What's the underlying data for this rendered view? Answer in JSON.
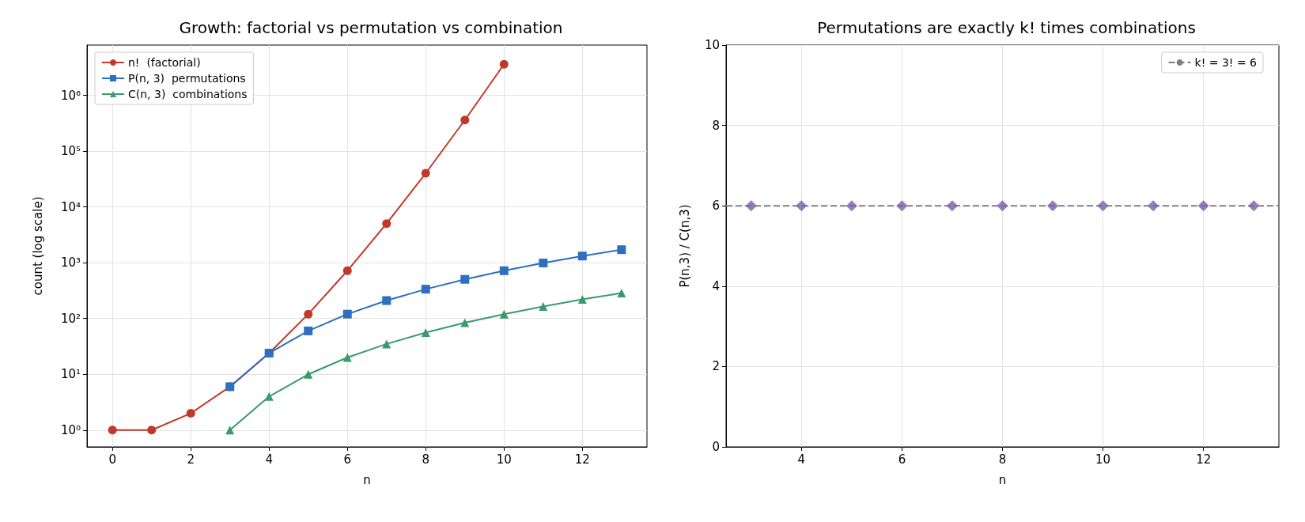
{
  "chart_data": [
    {
      "type": "line",
      "title": "Growth: factorial vs permutation vs combination",
      "xlabel": "n",
      "ylabel": "count (log scale)",
      "log": "y",
      "grid": true,
      "legend": "top left",
      "line_style": "solid",
      "xlim": [
        -0.65,
        13.65
      ],
      "xticks": [
        0,
        2,
        4,
        6,
        8,
        10,
        12
      ],
      "ylim": [
        0.5,
        8000000
      ],
      "yticks": [
        {
          "value": 1,
          "label": "10⁰"
        },
        {
          "value": 10,
          "label": "10¹"
        },
        {
          "value": 100,
          "label": "10²"
        },
        {
          "value": 1000,
          "label": "10³"
        },
        {
          "value": 10000,
          "label": "10⁴"
        },
        {
          "value": 100000,
          "label": "10⁵"
        },
        {
          "value": 1000000,
          "label": "10⁶"
        }
      ],
      "series": [
        {
          "name": "n!  (factorial)",
          "color": "#c0392b",
          "marker": "circle",
          "x": [
            0,
            1,
            2,
            3,
            4,
            5,
            6,
            7,
            8,
            9,
            10
          ],
          "values": [
            1,
            1,
            2,
            6,
            24,
            120,
            720,
            5040,
            40320,
            362880,
            3628800
          ]
        },
        {
          "name": "P(n, 3)  permutations",
          "color": "#2e6fbf",
          "marker": "square",
          "x": [
            3,
            4,
            5,
            6,
            7,
            8,
            9,
            10,
            11,
            12,
            13
          ],
          "values": [
            6,
            24,
            60,
            120,
            210,
            336,
            504,
            720,
            990,
            1320,
            1716
          ]
        },
        {
          "name": "C(n, 3)  combinations",
          "color": "#3a9a6e",
          "marker": "triangle",
          "x": [
            3,
            4,
            5,
            6,
            7,
            8,
            9,
            10,
            11,
            12,
            13
          ],
          "values": [
            1,
            4,
            10,
            20,
            35,
            56,
            84,
            120,
            165,
            220,
            286
          ]
        }
      ]
    },
    {
      "type": "scatter",
      "title": "Permutations are exactly k! times combinations",
      "xlabel": "n",
      "ylabel": "P(n,3) / C(n,3)",
      "grid": true,
      "legend": "top right",
      "xlim": [
        2.5,
        13.5
      ],
      "xticks": [
        4,
        6,
        8,
        10,
        12
      ],
      "ylim": [
        0,
        10
      ],
      "yticks": [
        0,
        2,
        4,
        6,
        8,
        10
      ],
      "ref_lines": [
        {
          "axis": "y",
          "value": 6,
          "label": "k! = 3! = 6",
          "color": "#808080",
          "line_style": "dashed"
        }
      ],
      "series": [
        {
          "color": "#7b5ea7",
          "marker": "diamond",
          "x": [
            3,
            4,
            5,
            6,
            7,
            8,
            9,
            10,
            11,
            12,
            13
          ],
          "values": [
            6,
            6,
            6,
            6,
            6,
            6,
            6,
            6,
            6,
            6,
            6
          ]
        }
      ]
    }
  ]
}
